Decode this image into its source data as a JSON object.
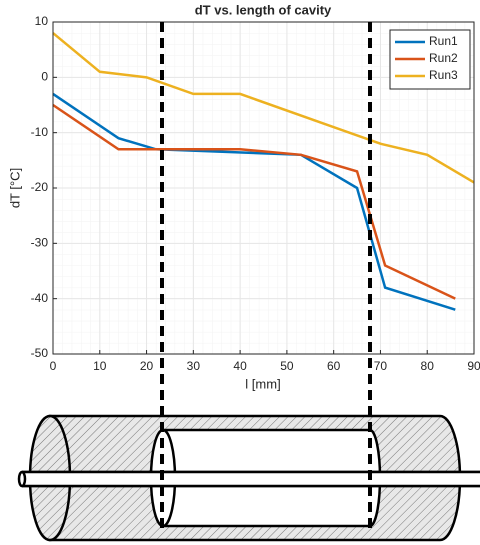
{
  "chart_data": {
    "type": "line",
    "title": "dT vs. length of cavity",
    "x_label": "l [mm]",
    "y_label": "dT [°C]",
    "xlim": [
      0,
      90
    ],
    "xticks": [
      0,
      10,
      20,
      30,
      40,
      50,
      60,
      70,
      80,
      90
    ],
    "ylim": [
      -50,
      10
    ],
    "yticks": [
      -50,
      -40,
      -30,
      -20,
      -10,
      0,
      10
    ],
    "grid": true,
    "minor_grid": true,
    "legend": "northeast",
    "series": [
      {
        "name": "Run1",
        "color": "#0072BD",
        "x": [
          0,
          14,
          22,
          53,
          65,
          71,
          86
        ],
        "values": [
          -3,
          -11,
          -13,
          -14,
          -20,
          -38,
          -42
        ]
      },
      {
        "name": "Run2",
        "color": "#D95319",
        "x": [
          0,
          14,
          40,
          53,
          65,
          71,
          86
        ],
        "values": [
          -5,
          -13,
          -13,
          -14,
          -17,
          -34,
          -40
        ]
      },
      {
        "name": "Run3",
        "color": "#EDB120",
        "x": [
          0,
          10,
          20,
          30,
          40,
          70,
          80,
          90
        ],
        "values": [
          8,
          1,
          0,
          -3,
          -3,
          -12,
          -14,
          -19
        ]
      }
    ]
  }
}
